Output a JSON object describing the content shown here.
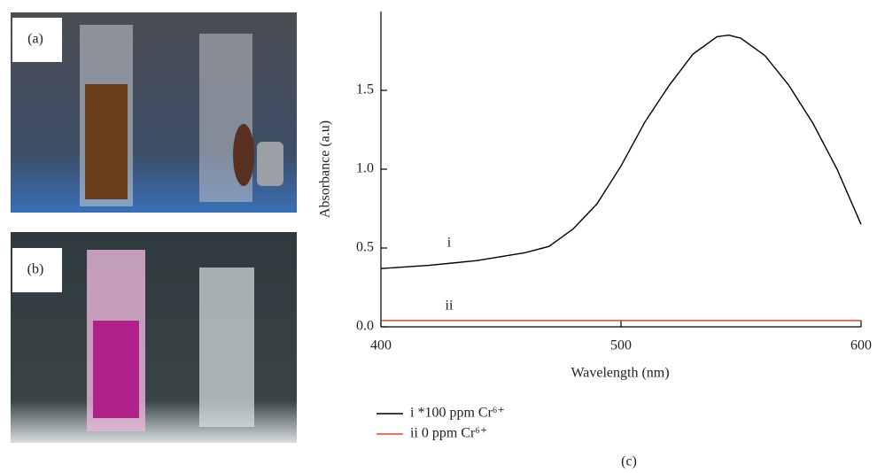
{
  "panel_labels": [
    "(a)",
    "(b)"
  ],
  "chart_data": {
    "type": "line",
    "caption": "(c)",
    "x_label": "Wavelength (nm)",
    "y_label": "Absorbance (a.u)",
    "x": [
      400,
      420,
      440,
      460,
      470,
      480,
      490,
      500,
      510,
      520,
      530,
      540,
      545,
      550,
      560,
      570,
      580,
      590,
      600
    ],
    "series": [
      {
        "name": "i *100 ppm Cr⁶⁺",
        "color": "#000000",
        "values": [
          0.37,
          0.39,
          0.42,
          0.47,
          0.51,
          0.62,
          0.78,
          1.02,
          1.3,
          1.53,
          1.73,
          1.84,
          1.85,
          1.83,
          1.72,
          1.53,
          1.29,
          1.0,
          0.65
        ]
      },
      {
        "name": "ii 0 ppm Cr⁶⁺",
        "color": "#e0452e",
        "values": [
          0.04,
          0.04,
          0.04,
          0.04,
          0.04,
          0.04,
          0.04,
          0.04,
          0.04,
          0.04,
          0.04,
          0.04,
          0.04,
          0.04,
          0.04,
          0.04,
          0.04,
          0.04,
          0.04
        ]
      }
    ],
    "annotations": [
      "i",
      "ii"
    ],
    "xlim": [
      400,
      600
    ],
    "xticks": [
      400,
      500,
      600
    ],
    "ylim": [
      0,
      2
    ],
    "yticks": [
      {
        "value": 0,
        "label": "0.0"
      },
      0.5,
      {
        "value": 1,
        "label": "1.0"
      },
      1.5
    ],
    "grid": false,
    "legend": "bottom-left"
  }
}
